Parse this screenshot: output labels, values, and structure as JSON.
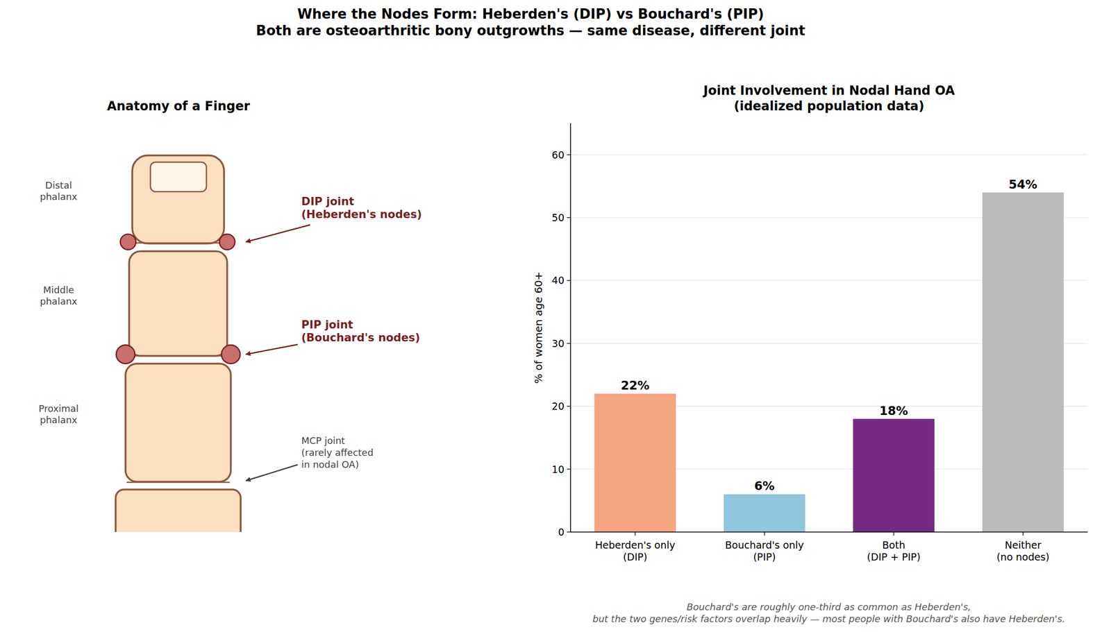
{
  "title": "Where the Nodes Form: Heberden's (DIP) vs Bouchard's (PIP)",
  "subtitle": "Both are osteoarthritic bony outgrowths — same disease, different joint",
  "diagram": {
    "title": "Anatomy of a Finger",
    "segment_labels": [
      "Distal\nphalanx",
      "Middle\nphalanx",
      "Proximal\nphalanx"
    ],
    "joint_labels": [
      "DIP joint\n(Heberden's nodes)",
      "PIP joint\n(Bouchard's nodes)",
      "MCP joint\n(rarely affected\nin nodal OA)"
    ]
  },
  "chart_data": {
    "type": "bar",
    "title": "Joint Involvement in Nodal Hand OA\n(idealized population data)",
    "y_label": "% of women age 60+",
    "categories": [
      "Heberden's only\n(DIP)",
      "Bouchard's only\n(PIP)",
      "Both\n(DIP + PIP)",
      "Neither\n(no nodes)"
    ],
    "values": [
      22,
      6,
      18,
      54
    ],
    "value_labels": [
      "22%",
      "6%",
      "18%",
      "54%"
    ],
    "colors": [
      "#f4a582",
      "#92c5de",
      "#762a83",
      "#bbbbbb"
    ],
    "ylim": [
      0,
      65
    ],
    "yticks": [
      0,
      10,
      20,
      30,
      40,
      50,
      60
    ],
    "grid": true,
    "data_labels": true
  },
  "footnote": "Bouchard's are roughly one-third as common as Heberden's,\nbut the two genes/risk factors overlap heavily — most people with Bouchard's also have Heberden's."
}
